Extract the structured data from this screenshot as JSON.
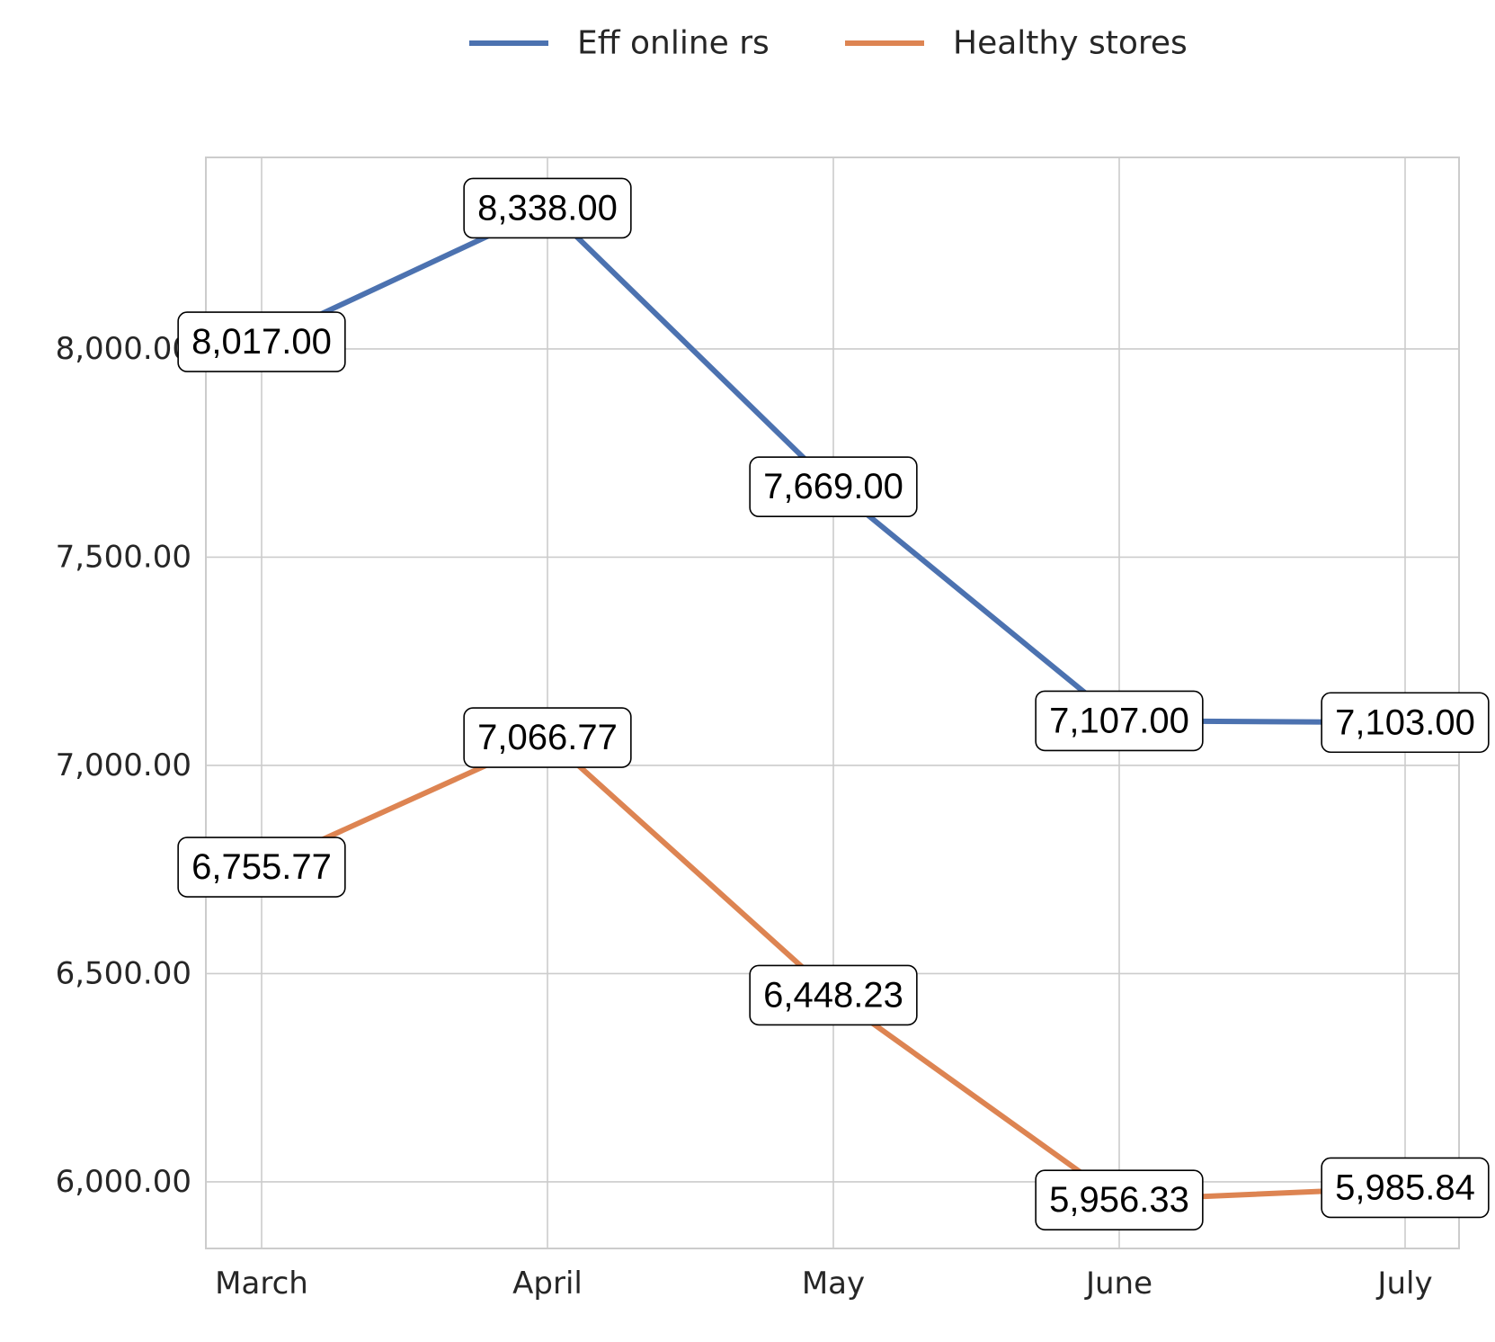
{
  "chart_data": {
    "type": "line",
    "categories": [
      "March",
      "April",
      "May",
      "June",
      "July"
    ],
    "series": [
      {
        "name": "Eff online rs",
        "color": "#4c72b0",
        "values": [
          8017.0,
          8338.0,
          7669.0,
          7107.0,
          7103.0
        ],
        "labels": [
          "8,017.00",
          "8,338.00",
          "7,669.00",
          "7,107.00",
          "7,103.00"
        ]
      },
      {
        "name": "Healthy stores",
        "color": "#dd8452",
        "values": [
          6755.77,
          7066.77,
          6448.23,
          5956.33,
          5985.84
        ],
        "labels": [
          "6,755.77",
          "7,066.77",
          "6,448.23",
          "5,956.33",
          "5,985.84"
        ]
      }
    ],
    "yticks": [
      6000,
      6500,
      7000,
      7500,
      8000
    ],
    "ytick_labels": [
      "6,000.00",
      "6,500.00",
      "7,000.00",
      "7,500.00",
      "8,000.00"
    ],
    "ylim": [
      5840,
      8460
    ],
    "grid": true,
    "legend": "top-center",
    "title": "",
    "xlabel": "",
    "ylabel": ""
  }
}
